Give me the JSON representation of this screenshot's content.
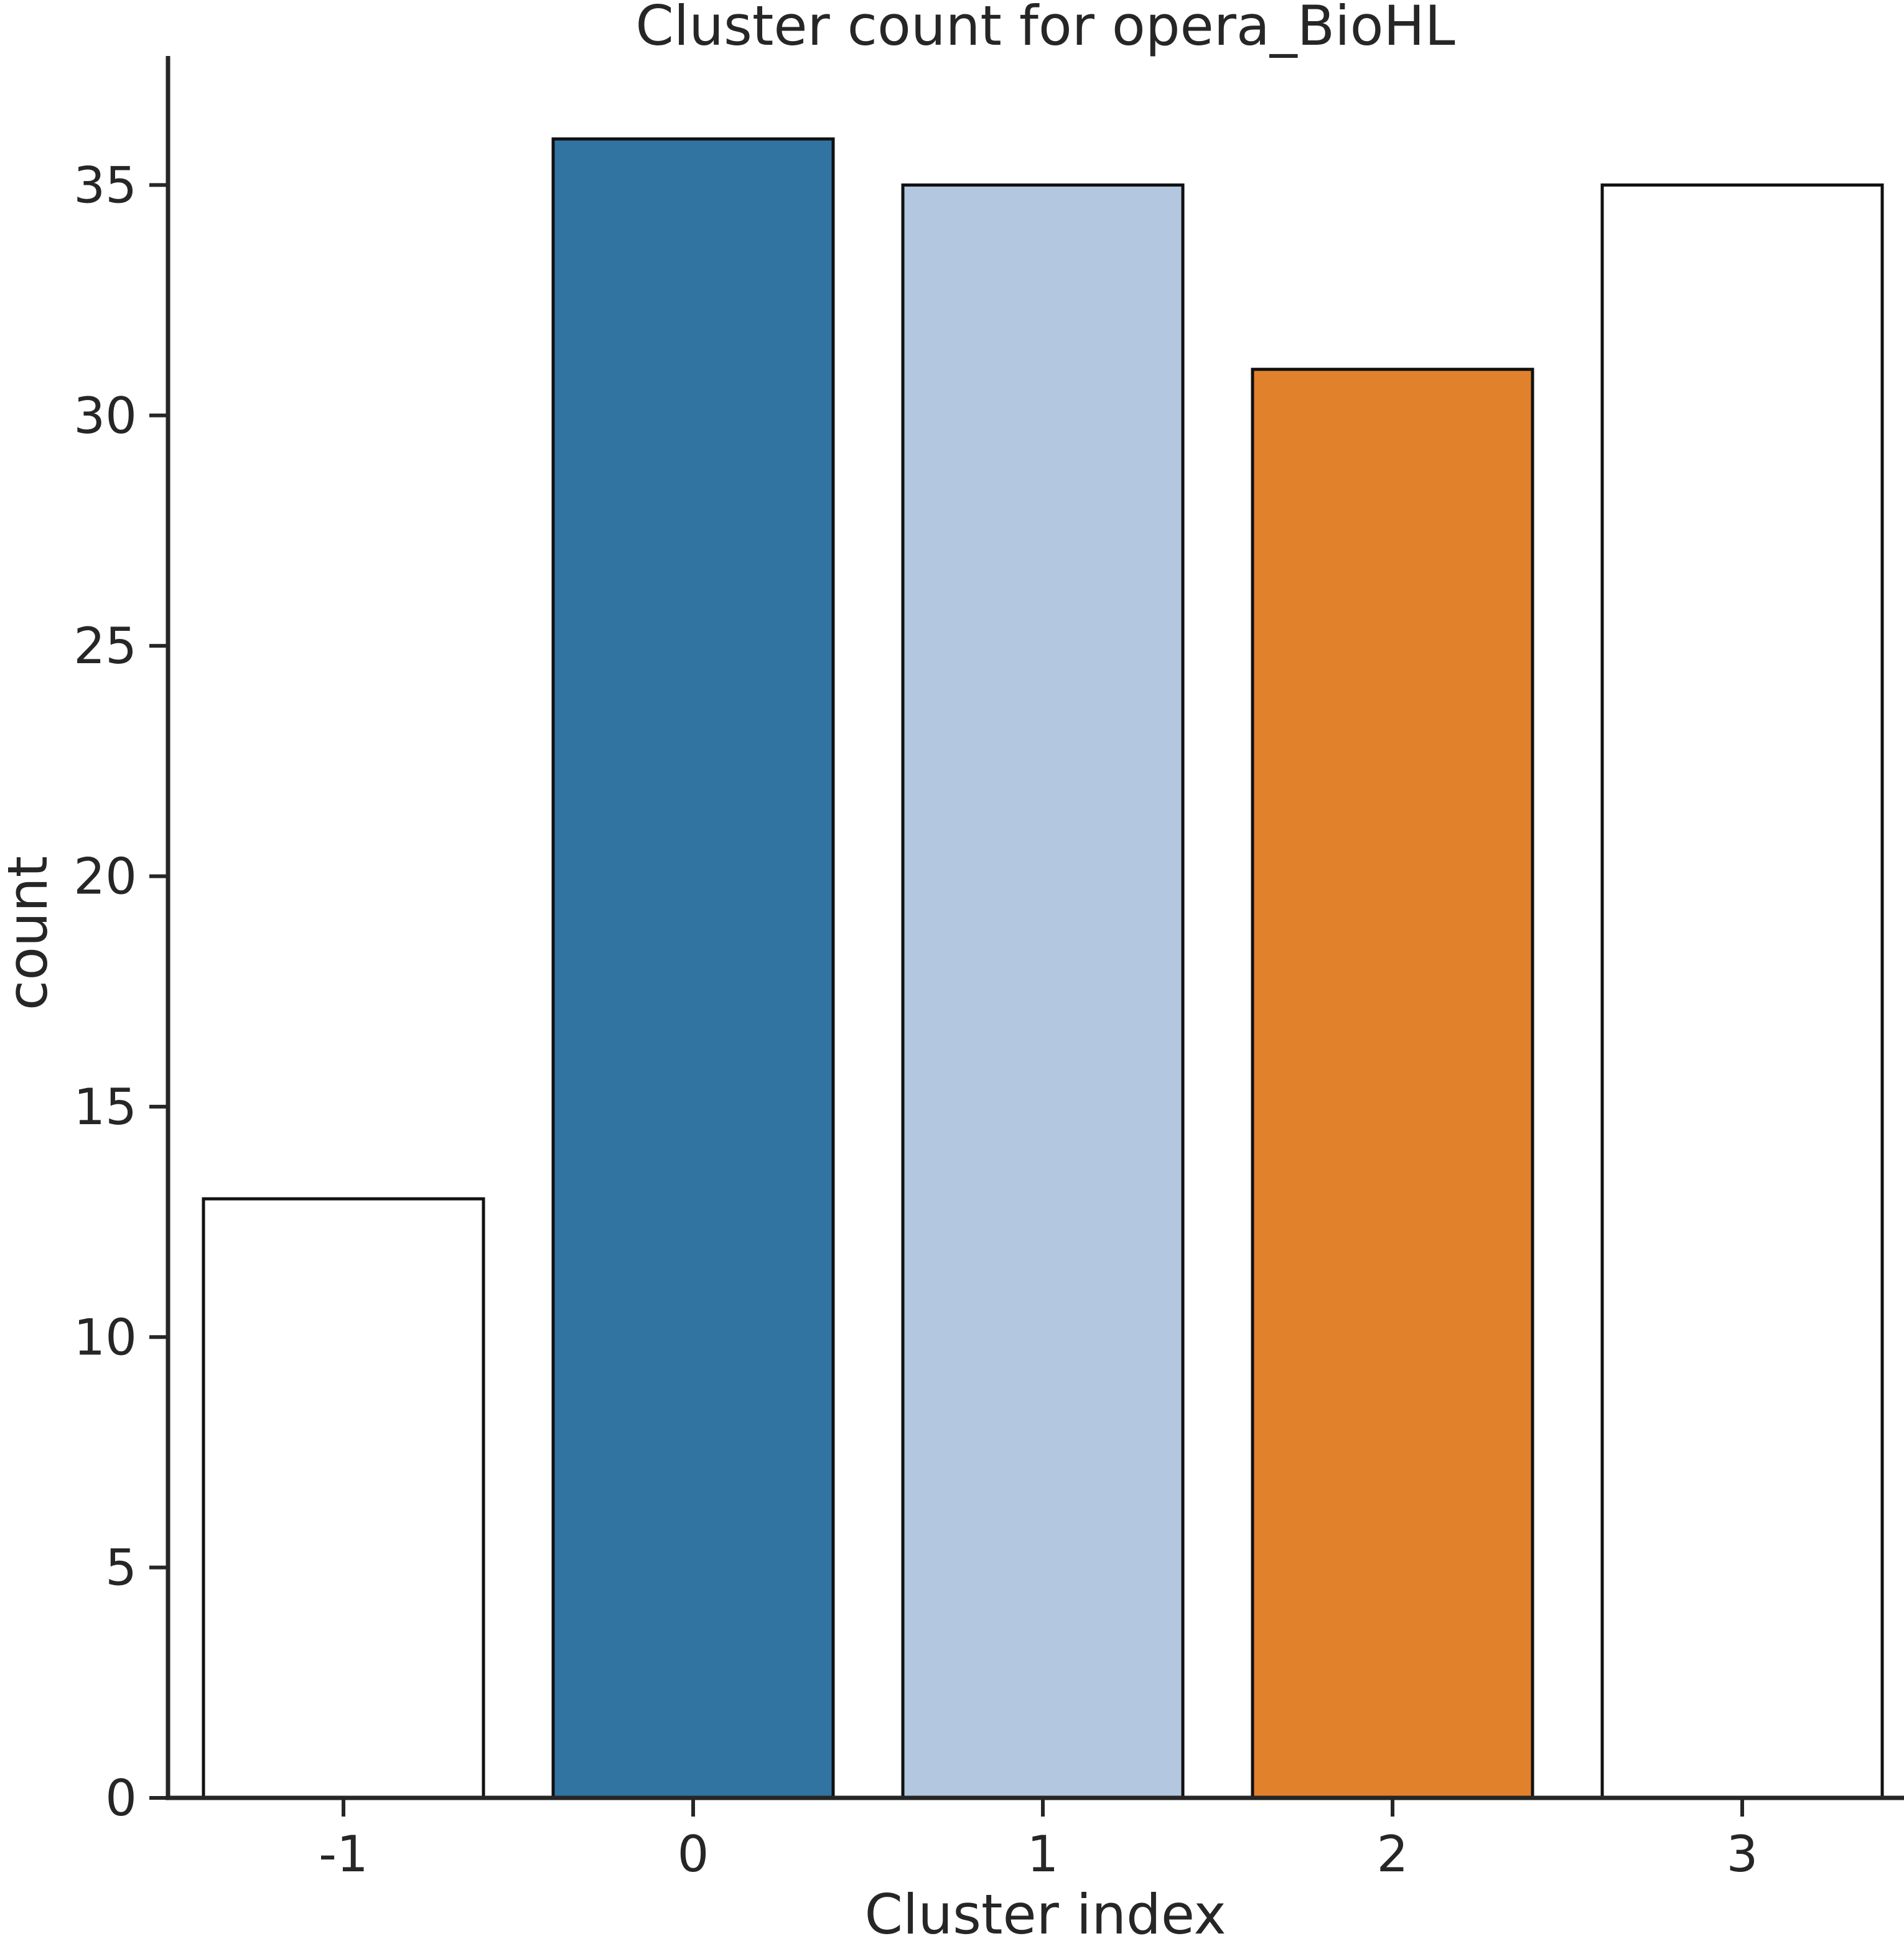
{
  "chart_data": {
    "type": "bar",
    "title": "Cluster count for opera_BioHL",
    "xlabel": "Cluster index",
    "ylabel": "count",
    "categories": [
      "-1",
      "0",
      "1",
      "2",
      "3"
    ],
    "values": [
      13,
      36,
      35,
      31,
      35
    ],
    "bar_colors": [
      "#ffffff",
      "#3274a1",
      "#b3c7e0",
      "#e1812c",
      "#ffffff"
    ],
    "edge_color": "#111111",
    "ylim": [
      0,
      37.8
    ],
    "yticks": [
      0,
      5,
      10,
      15,
      20,
      25,
      30,
      35
    ],
    "grid": false,
    "legend": "none"
  }
}
